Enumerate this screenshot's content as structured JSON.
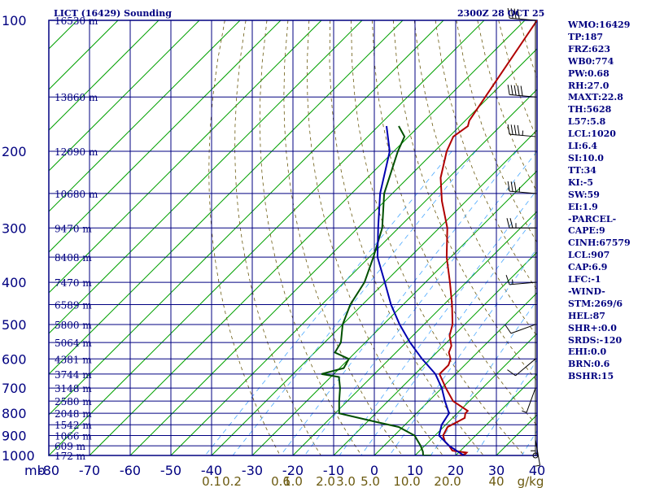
{
  "header": {
    "station": "LICT (16429) Sounding",
    "time": "2300Z 28 OCT 25"
  },
  "indices": [
    "WMO:16429",
    "TP:187",
    "FRZ:623",
    "WB0:774",
    "PW:0.68",
    "RH:27.0",
    "MAXT:22.8",
    "TH:5628",
    "L57:5.8",
    "LCL:1020",
    "LI:6.4",
    "SI:10.0",
    "TT:34",
    "KI:-5",
    "SW:59",
    "EI:1.9",
    "-PARCEL-",
    "CAPE:9",
    "CINH:67579",
    "LCL:907",
    "CAP:6.9",
    "LFC:-1",
    "-WIND-",
    "STM:269/6",
    "HEL:87",
    "SHR+:0.0",
    "SRDS:-120",
    "EHI:0.0",
    "BRN:0.6",
    "BSHR:15"
  ],
  "colors": {
    "grid": "#000080",
    "isotherm": "#00a000",
    "temperature": "#b00000",
    "dewpoint": "#005000",
    "parcel": "#0000b0",
    "mixing_ratio": "#4aa8ff",
    "adiabat": "#6b5a10"
  },
  "chart_data": {
    "type": "line",
    "title": "LICT (16429) Sounding",
    "subtitle": "2300Z 28 OCT 25",
    "x_axis": {
      "label": "",
      "min": -80,
      "max": 40,
      "ticks": [
        -80,
        -70,
        -60,
        -50,
        -40,
        -30,
        -20,
        -10,
        0,
        10,
        20,
        30,
        40
      ],
      "tick_labels": [
        "-80",
        "-70",
        "-60",
        "-50",
        "-40",
        "-30",
        "-20",
        "-10",
        "0",
        "10",
        "20",
        "30",
        "40"
      ],
      "units_label": "mb"
    },
    "y_axis": {
      "label": "mb",
      "scale": "log",
      "min": 100,
      "max": 1000,
      "ticks": [
        100,
        200,
        300,
        400,
        500,
        600,
        700,
        800,
        900,
        1000
      ]
    },
    "height_labels": [
      {
        "p": 100,
        "text": "16530 m"
      },
      {
        "p": 150,
        "text": "13860 m"
      },
      {
        "p": 200,
        "text": "12090 m"
      },
      {
        "p": 250,
        "text": "10680 m"
      },
      {
        "p": 300,
        "text": "9470 m"
      },
      {
        "p": 350,
        "text": "8408 m"
      },
      {
        "p": 400,
        "text": "7470 m"
      },
      {
        "p": 450,
        "text": "6589 m"
      },
      {
        "p": 500,
        "text": "5800 m"
      },
      {
        "p": 550,
        "text": "5064 m"
      },
      {
        "p": 600,
        "text": "4381 m"
      },
      {
        "p": 650,
        "text": "3744 m"
      },
      {
        "p": 700,
        "text": "3148 m"
      },
      {
        "p": 750,
        "text": "2580 m"
      },
      {
        "p": 800,
        "text": "2048 m"
      },
      {
        "p": 850,
        "text": "1542 m"
      },
      {
        "p": 900,
        "text": "1066 m"
      },
      {
        "p": 950,
        "text": "609 m"
      },
      {
        "p": 1000,
        "text": "172 m"
      }
    ],
    "mixing_ratio_labels": [
      "0.1",
      "0.2",
      "0.6",
      "1.0",
      "2.0",
      "3.0",
      "5.0",
      "10.0",
      "20.0",
      "40"
    ],
    "mixing_ratio_unit": "g/kg",
    "mixing_ratio_label_x": [
      -40,
      -35,
      -23,
      -20,
      -12,
      -7,
      -1,
      8,
      18,
      30
    ],
    "series": [
      {
        "values": [
          [
            100,
            -67
          ],
          [
            170,
            -59
          ],
          [
            175,
            -58
          ],
          [
            185,
            -59
          ],
          [
            200,
            -57
          ],
          [
            230,
            -52
          ],
          [
            260,
            -46
          ],
          [
            300,
            -38
          ],
          [
            350,
            -31
          ],
          [
            400,
            -24
          ],
          [
            450,
            -18
          ],
          [
            500,
            -13
          ],
          [
            530,
            -11
          ],
          [
            560,
            -8
          ],
          [
            580,
            -7
          ],
          [
            600,
            -5
          ],
          [
            620,
            -4
          ],
          [
            650,
            -4
          ],
          [
            700,
            1
          ],
          [
            750,
            6
          ],
          [
            790,
            12
          ],
          [
            800,
            12
          ],
          [
            820,
            13
          ],
          [
            840,
            12
          ],
          [
            860,
            11
          ],
          [
            900,
            12
          ],
          [
            930,
            14
          ],
          [
            950,
            16
          ],
          [
            975,
            18
          ],
          [
            985,
            22
          ],
          [
            992,
            22
          ],
          [
            1000,
            21
          ]
        ]
      },
      {
        "values": [
          [
            175,
            -75
          ],
          [
            185,
            -71
          ],
          [
            200,
            -69
          ],
          [
            250,
            -62
          ],
          [
            300,
            -54
          ],
          [
            350,
            -49
          ],
          [
            400,
            -45
          ],
          [
            450,
            -43
          ],
          [
            500,
            -40
          ],
          [
            550,
            -36
          ],
          [
            580,
            -35
          ],
          [
            600,
            -30
          ],
          [
            630,
            -29
          ],
          [
            650,
            -33
          ],
          [
            660,
            -28
          ],
          [
            700,
            -25
          ],
          [
            750,
            -22
          ],
          [
            800,
            -19
          ],
          [
            820,
            -13
          ],
          [
            840,
            -7
          ],
          [
            860,
            -1
          ],
          [
            900,
            5
          ],
          [
            950,
            9
          ],
          [
            980,
            11
          ],
          [
            1000,
            12
          ],
          [
            1000,
            14
          ]
        ]
      },
      {
        "values": [
          [
            175,
            -78
          ],
          [
            200,
            -71
          ],
          [
            250,
            -63
          ],
          [
            300,
            -55
          ],
          [
            350,
            -48
          ],
          [
            400,
            -40
          ],
          [
            450,
            -33
          ],
          [
            500,
            -26
          ],
          [
            550,
            -19
          ],
          [
            600,
            -12
          ],
          [
            650,
            -5
          ],
          [
            700,
            0
          ],
          [
            750,
            4
          ],
          [
            800,
            8
          ],
          [
            850,
            9
          ],
          [
            900,
            11
          ],
          [
            950,
            16
          ],
          [
            1000,
            22
          ]
        ]
      }
    ],
    "wind_barbs": [
      {
        "p": 100,
        "dir": 275,
        "spd": 40
      },
      {
        "p": 150,
        "dir": 275,
        "spd": 50
      },
      {
        "p": 185,
        "dir": 275,
        "spd": 45
      },
      {
        "p": 250,
        "dir": 275,
        "spd": 35
      },
      {
        "p": 300,
        "dir": 270,
        "spd": 25
      },
      {
        "p": 400,
        "dir": 265,
        "spd": 15
      },
      {
        "p": 500,
        "dir": 250,
        "spd": 10
      },
      {
        "p": 600,
        "dir": 230,
        "spd": 10
      },
      {
        "p": 700,
        "dir": 200,
        "spd": 5
      },
      {
        "p": 850,
        "dir": 180,
        "spd": 5
      },
      {
        "p": 920,
        "dir": 170,
        "spd": 5
      },
      {
        "p": 1000,
        "dir": 0,
        "spd": 0
      }
    ],
    "grid": true
  }
}
